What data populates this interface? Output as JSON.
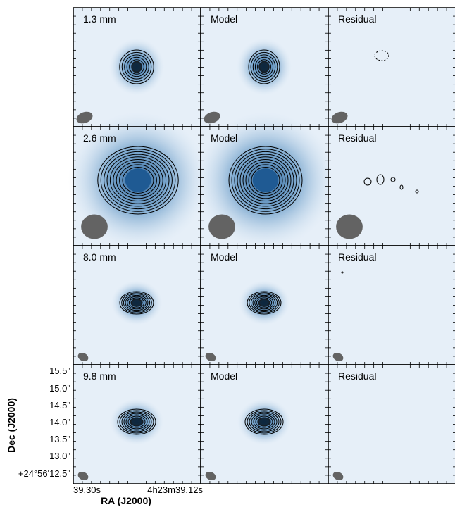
{
  "figure": {
    "rows": [
      {
        "panels": [
          "1.3 mm",
          "Model",
          "Residual"
        ]
      },
      {
        "panels": [
          "2.6 mm",
          "Model",
          "Residual"
        ]
      },
      {
        "panels": [
          "8.0 mm",
          "Model",
          "Residual"
        ]
      },
      {
        "panels": [
          "9.8 mm",
          "Model",
          "Residual"
        ]
      }
    ],
    "y_ticks": [
      "15.5\"",
      "15.0\"",
      "14.5\"",
      "14.0\"",
      "13.5\"",
      "13.0\"",
      "+24°56'12.5\""
    ],
    "x_ticks": [
      "39.30s",
      "4h23m39.12s"
    ],
    "ylabel": "Dec (J2000)",
    "xlabel": "RA (J2000)",
    "colors": {
      "background": "#e6eff8",
      "core": "#1f5a93",
      "contour": "#000000",
      "beam": "#636363",
      "frame": "#000000"
    }
  }
}
